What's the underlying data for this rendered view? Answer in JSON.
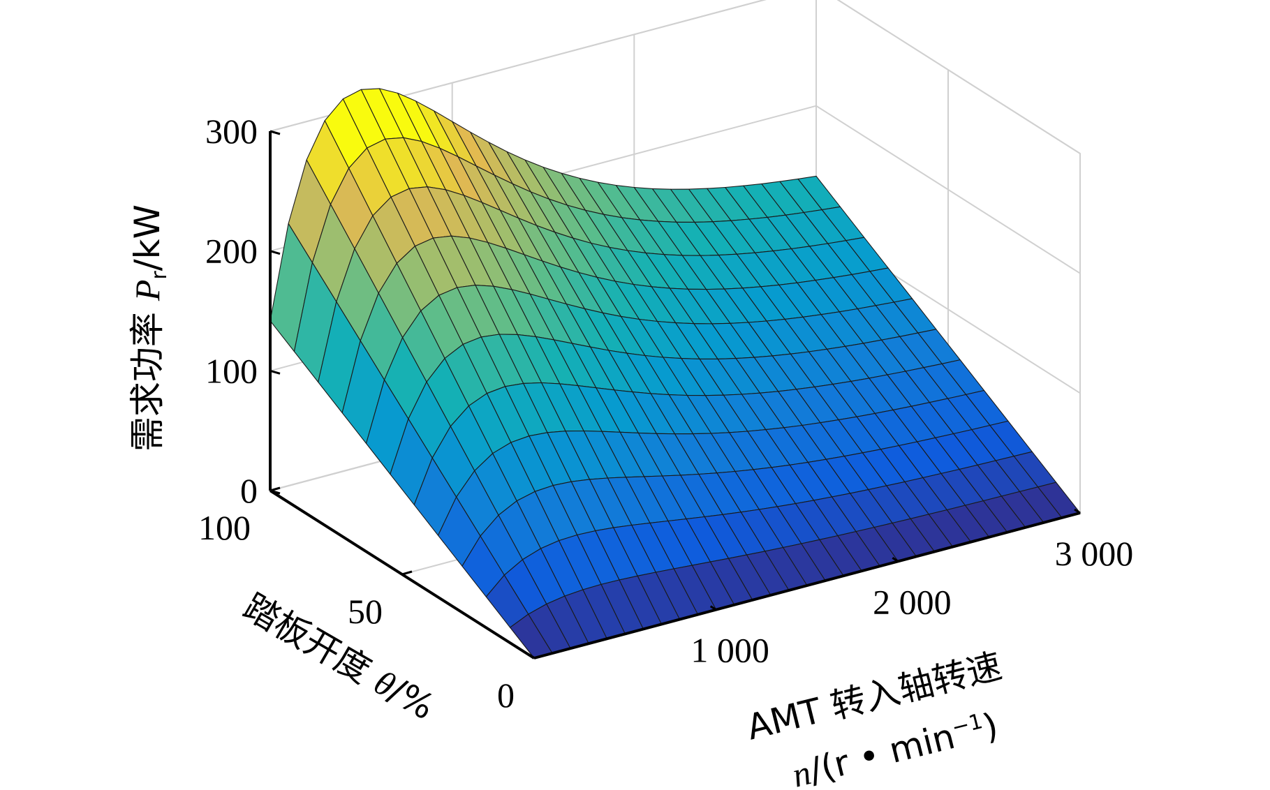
{
  "chart_data": {
    "type": "surface3d",
    "title": "",
    "zlabel": {
      "prefix": "需求功率 ",
      "var": "P",
      "sub": "r",
      "unit": "/kW"
    },
    "ylabel": {
      "text": "踏板开度 ",
      "var": "θ",
      "unit": "/%"
    },
    "xlabel": {
      "line1": "AMT 转入轴转速",
      "var": "n",
      "unit_open": "/(r • min",
      "unit_sup": "−1",
      "unit_close": ")"
    },
    "x_ticks": [
      "1 000",
      "2 000",
      "3 000"
    ],
    "y_ticks": [
      "0",
      "50",
      "100"
    ],
    "z_ticks": [
      "0",
      "100",
      "200",
      "300"
    ],
    "xlim": [
      0,
      3000
    ],
    "ylim": [
      0,
      100
    ],
    "zlim": [
      0,
      300
    ],
    "grid": true,
    "colormap": "parula",
    "surface": {
      "description_note": "",
      "x_samples": 30,
      "y_samples": 11,
      "peak_power": 315,
      "peak_speed": 500,
      "pedal_exponent": 1.0
    }
  }
}
